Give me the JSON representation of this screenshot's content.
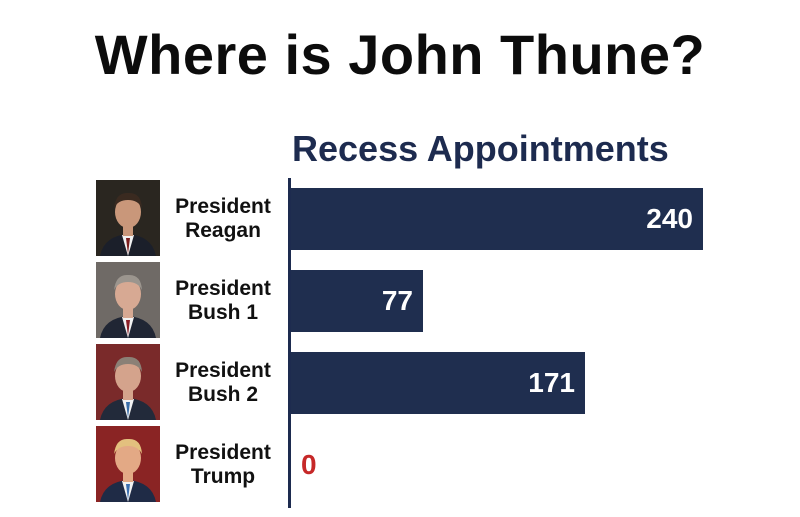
{
  "headline": "Where is John Thune?",
  "chart_data": {
    "type": "bar",
    "orientation": "horizontal",
    "title": "Recess Appointments",
    "categories": [
      [
        "President",
        "Reagan"
      ],
      [
        "President",
        "Bush 1"
      ],
      [
        "President",
        "Bush 2"
      ],
      [
        "President",
        "Trump"
      ]
    ],
    "values": [
      240,
      77,
      171,
      0
    ],
    "xlim": [
      0,
      240
    ],
    "grid": false,
    "legend": "none",
    "colors": {
      "bar": "#1f2e4f",
      "zero_label": "#c62828",
      "title": "#1d2b4f"
    }
  },
  "portraits": [
    "reagan-portrait",
    "bush1-portrait",
    "bush2-portrait",
    "trump-portrait"
  ]
}
